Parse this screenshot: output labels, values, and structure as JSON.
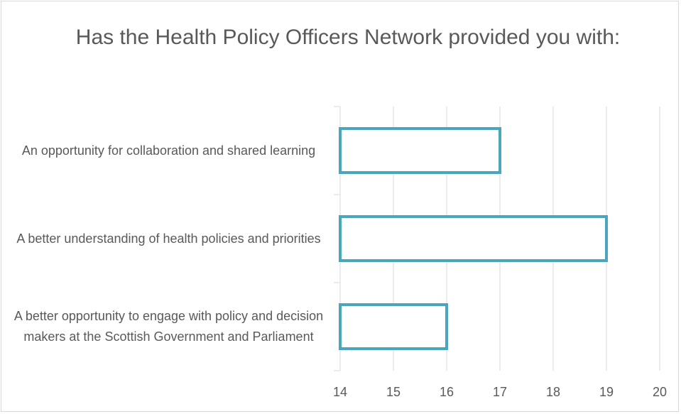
{
  "chart_data": {
    "type": "hbar",
    "title": "Has the Health Policy Officers Network provided you with:",
    "categories": [
      "An opportunity for collaboration and shared learning",
      "A better understanding of health policies and priorities",
      "A better opportunity to engage with policy and decision makers at the Scottish Government and Parliament"
    ],
    "values": [
      17,
      19,
      16
    ],
    "color": "#4aa6bd",
    "xlim": [
      14,
      20
    ],
    "xticks": [
      14,
      15,
      16,
      17,
      18,
      19,
      20
    ],
    "grid": true
  }
}
